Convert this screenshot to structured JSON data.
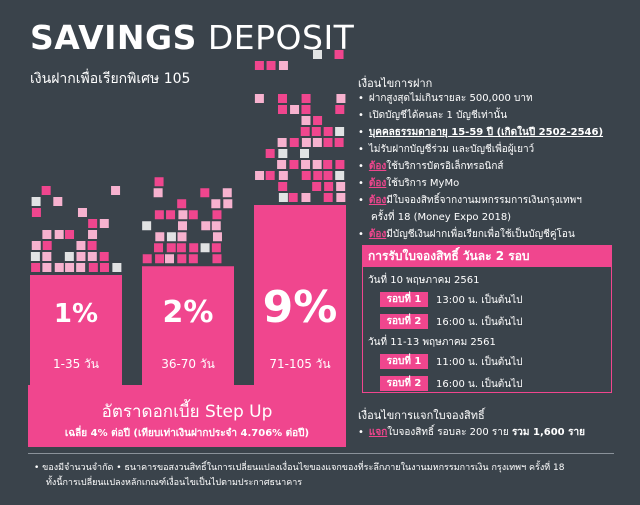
{
  "header": {
    "title_bold": "SAVINGS",
    "title_light": "DEPOSIT",
    "subtitle": "เงินฝากเพื่อเรียกพิเศษ 105"
  },
  "colors": {
    "accent": "#f0468e",
    "background": "#3a434b",
    "light_pink": "#f7b2cf"
  },
  "chart_data": {
    "type": "bar",
    "categories": [
      "1-35 วัน",
      "36-70 วัน",
      "71-105 วัน"
    ],
    "values": [
      1,
      2,
      9
    ],
    "value_labels": [
      "1%",
      "2%",
      "9%"
    ],
    "title": "อัตราดอกเบี้ย Step Up",
    "note": "เฉลี่ย 4% ต่อปี (เทียบเท่าเงินฝากประจำ 4.706% ต่อปี)"
  },
  "conditions": {
    "heading": "เงื่อนไขการฝาก",
    "items": [
      {
        "pre": "",
        "em": "",
        "text": "ฝากสูงสุดไม่เกินรายละ 500,000 บาท"
      },
      {
        "pre": "",
        "em": "",
        "text": "เปิดบัญชีได้คนละ 1 บัญชีเท่านั้น"
      },
      {
        "pre": "",
        "em": "",
        "text": "บุคคลธรรมดาอายุ 15-59 ปี (เกิดในปี 2502-2546)"
      },
      {
        "pre": "",
        "em": "",
        "text": "ไม่รับฝากบัญชีร่วม และบัญชีเพื่อผู้เยาว์"
      },
      {
        "pre": "ต้อง",
        "em": "",
        "text": "ใช้บริการบัตรอิเล็กทรอนิกส์"
      },
      {
        "pre": "ต้อง",
        "em": "",
        "text": "ใช้บริการ MyMo"
      },
      {
        "pre": "ต้อง",
        "em": "",
        "text": "มีใบจองสิทธิ์จากงานมหกรรมการเงินกรุงเทพฯ"
      },
      {
        "pre": "",
        "em": "",
        "text": "ครั้งที่ 18 (Money Expo 2018)"
      },
      {
        "pre": "ต้อง",
        "em": "",
        "text": "มีบัญชีเงินฝากเพื่อเรียกเพื่อใช้เป็นบัญชีคู่โอน"
      }
    ]
  },
  "booking": {
    "title": "การรับใบจองสิทธิ์ วันละ 2 รอบ",
    "day1": "วันที่ 10 พฤษภาคม 2561",
    "day2": "วันที่ 11-13 พฤษภาคม 2561",
    "rounds": [
      {
        "label": "รอบที่ 1",
        "time": "13:00 น. เป็นต้นไป"
      },
      {
        "label": "รอบที่ 2",
        "time": "16:00 น. เป็นต้นไป"
      },
      {
        "label": "รอบที่ 1",
        "time": "11:00 น. เป็นต้นไป"
      },
      {
        "label": "รอบที่ 2",
        "time": "16:00 น. เป็นต้นไป"
      }
    ]
  },
  "distribution": {
    "heading": "เงื่อนไขการแจกใบจองสิทธิ์",
    "pre": "แจก",
    "text": "ใบจองสิทธิ์ รอบละ 200 ราย",
    "total": "รวม 1,600 ราย"
  },
  "footer": {
    "line1": "•  ของมีจำนวนจำกัด  •  ธนาคารขอสงวนสิทธิ์ในการเปลี่ยนแปลงเงื่อนไขของแจกของที่ระลึกภายในงานมหกรรมการเงิน กรุงเทพฯ ครั้งที่ 18",
    "line2": "ทั้งนี้การเปลี่ยนแปลงหลักเกณฑ์เงื่อนไขเป็นไปตามประกาศธนาคาร"
  }
}
